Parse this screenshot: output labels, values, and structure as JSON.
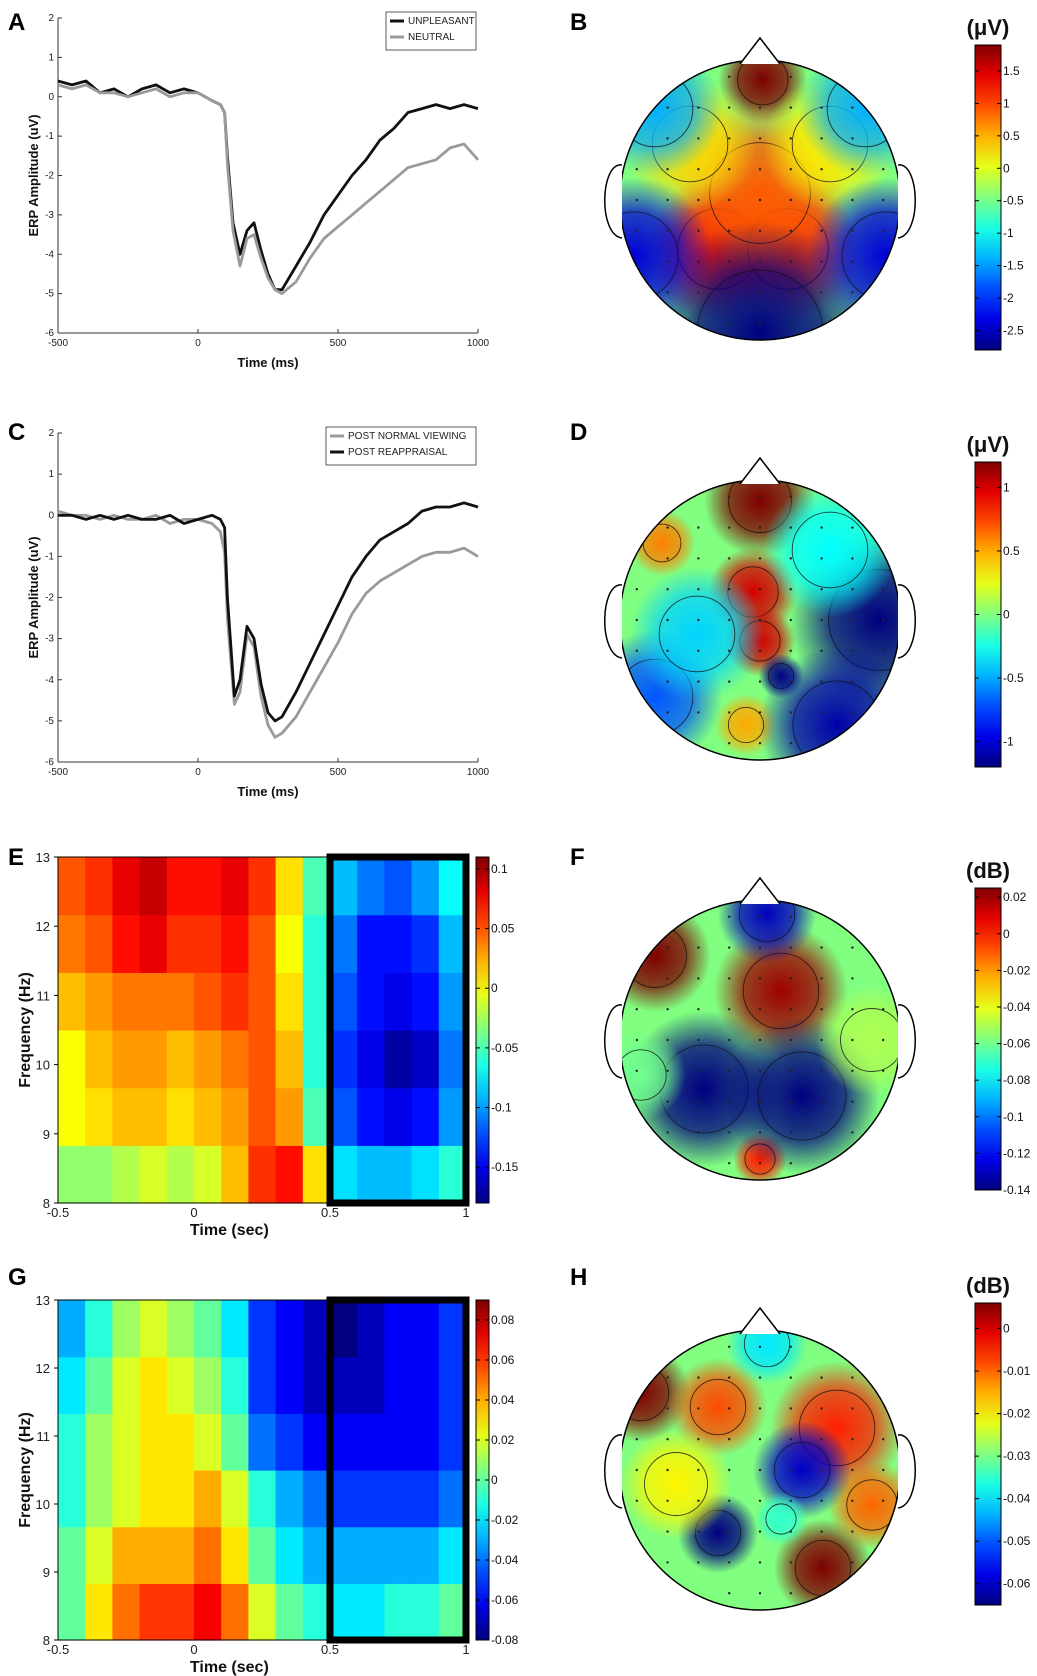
{
  "chart_data": [
    {
      "panel": "A",
      "type": "line",
      "xlabel": "Time (ms)",
      "ylabel": "ERP Amplitude (uV)",
      "xlim": [
        -500,
        1000
      ],
      "ylim": [
        -6,
        2
      ],
      "xticks": [
        "-500",
        "0",
        "500",
        "1000"
      ],
      "yticks": [
        "-6",
        "-5",
        "-4",
        "-3",
        "-2",
        "-1",
        "0",
        "1",
        "2"
      ],
      "legend_position": "top-right",
      "series": [
        {
          "name": "UNPLEASANT",
          "color": "#111111",
          "x": [
            -500,
            -450,
            -400,
            -350,
            -300,
            -250,
            -200,
            -150,
            -100,
            -50,
            0,
            50,
            80,
            95,
            105,
            125,
            150,
            175,
            200,
            225,
            250,
            275,
            300,
            350,
            400,
            450,
            500,
            550,
            600,
            650,
            700,
            750,
            800,
            850,
            900,
            950,
            1000
          ],
          "y": [
            0.4,
            0.3,
            0.4,
            0.1,
            0.2,
            0.0,
            0.2,
            0.3,
            0.1,
            0.2,
            0.1,
            -0.1,
            -0.2,
            -0.4,
            -1.5,
            -3.2,
            -4.0,
            -3.4,
            -3.2,
            -3.9,
            -4.5,
            -4.9,
            -4.9,
            -4.3,
            -3.7,
            -3.0,
            -2.5,
            -2.0,
            -1.6,
            -1.1,
            -0.8,
            -0.4,
            -0.3,
            -0.2,
            -0.3,
            -0.2,
            -0.3
          ]
        },
        {
          "name": "NEUTRAL",
          "color": "#9a9a9a",
          "x": [
            -500,
            -450,
            -400,
            -350,
            -300,
            -250,
            -200,
            -150,
            -100,
            -50,
            0,
            50,
            80,
            95,
            105,
            125,
            150,
            175,
            200,
            225,
            250,
            275,
            300,
            350,
            400,
            450,
            500,
            550,
            600,
            650,
            700,
            750,
            800,
            850,
            900,
            950,
            1000
          ],
          "y": [
            0.3,
            0.2,
            0.3,
            0.1,
            0.1,
            0.0,
            0.1,
            0.2,
            0.0,
            0.1,
            0.1,
            -0.1,
            -0.2,
            -0.4,
            -1.7,
            -3.4,
            -4.3,
            -3.6,
            -3.5,
            -4.1,
            -4.6,
            -4.9,
            -5.0,
            -4.7,
            -4.1,
            -3.6,
            -3.3,
            -3.0,
            -2.7,
            -2.4,
            -2.1,
            -1.8,
            -1.7,
            -1.6,
            -1.3,
            -1.2,
            -1.6
          ]
        }
      ]
    },
    {
      "panel": "C",
      "type": "line",
      "xlabel": "Time (ms)",
      "ylabel": "ERP Amplitude (uV)",
      "xlim": [
        -500,
        1000
      ],
      "ylim": [
        -6,
        2
      ],
      "xticks": [
        "-500",
        "0",
        "500",
        "1000"
      ],
      "yticks": [
        "-6",
        "-5",
        "-4",
        "-3",
        "-2",
        "-1",
        "0",
        "1",
        "2"
      ],
      "legend_position": "top-right",
      "series": [
        {
          "name": "POST NORMAL VIEWING",
          "color": "#9a9a9a",
          "x": [
            -500,
            -450,
            -400,
            -350,
            -300,
            -250,
            -200,
            -150,
            -100,
            -50,
            0,
            50,
            80,
            95,
            105,
            130,
            150,
            175,
            200,
            225,
            250,
            275,
            300,
            350,
            400,
            450,
            500,
            550,
            600,
            650,
            700,
            750,
            800,
            850,
            900,
            950,
            1000
          ],
          "y": [
            0.1,
            0.0,
            0.0,
            -0.1,
            0.0,
            -0.1,
            -0.1,
            0.0,
            -0.2,
            -0.1,
            -0.1,
            -0.2,
            -0.4,
            -0.9,
            -2.5,
            -4.6,
            -4.3,
            -2.9,
            -3.2,
            -4.4,
            -5.1,
            -5.4,
            -5.3,
            -4.9,
            -4.3,
            -3.7,
            -3.1,
            -2.4,
            -1.9,
            -1.6,
            -1.4,
            -1.2,
            -1.0,
            -0.9,
            -0.9,
            -0.8,
            -1.0
          ]
        },
        {
          "name": "POST REAPPRAISAL",
          "color": "#111111",
          "x": [
            -500,
            -450,
            -400,
            -350,
            -300,
            -250,
            -200,
            -150,
            -100,
            -50,
            0,
            50,
            80,
            95,
            105,
            130,
            150,
            175,
            200,
            225,
            250,
            275,
            300,
            350,
            400,
            450,
            500,
            550,
            600,
            650,
            700,
            750,
            800,
            850,
            900,
            950,
            1000
          ],
          "y": [
            0.0,
            0.0,
            -0.1,
            0.0,
            -0.1,
            0.0,
            -0.1,
            -0.1,
            0.0,
            -0.2,
            -0.1,
            0.0,
            -0.1,
            -0.3,
            -2.0,
            -4.4,
            -4.0,
            -2.7,
            -3.0,
            -4.1,
            -4.8,
            -5.0,
            -4.9,
            -4.3,
            -3.6,
            -2.9,
            -2.2,
            -1.5,
            -1.0,
            -0.6,
            -0.4,
            -0.2,
            0.1,
            0.2,
            0.2,
            0.3,
            0.2
          ]
        }
      ]
    },
    {
      "panel": "E",
      "type": "heatmap",
      "xlabel": "Time (sec)",
      "ylabel": "Frequency (Hz)",
      "xlim": [
        -0.5,
        1
      ],
      "ylim": [
        8,
        13
      ],
      "xticks": [
        "-0.5",
        "0",
        "0.5",
        "1"
      ],
      "yticks": [
        "8",
        "9",
        "10",
        "11",
        "12",
        "13"
      ],
      "colorbar": {
        "min": -0.18,
        "max": 0.11,
        "ticks": [
          "0.1",
          "0.05",
          "0",
          "-0.05",
          "-0.1",
          "-0.15"
        ]
      },
      "highlight_box": {
        "x": [
          0.5,
          1
        ],
        "y": [
          8,
          13
        ]
      },
      "time": [
        -0.45,
        -0.35,
        -0.25,
        -0.15,
        -0.05,
        0.05,
        0.15,
        0.25,
        0.35,
        0.45,
        0.55,
        0.65,
        0.75,
        0.85,
        0.95
      ],
      "freq": [
        8,
        9,
        10,
        11,
        12,
        13
      ],
      "values": [
        [
          -0.03,
          -0.03,
          -0.02,
          -0.01,
          -0.02,
          -0.01,
          0.02,
          0.06,
          0.07,
          0.01,
          -0.08,
          -0.09,
          -0.09,
          -0.08,
          -0.06
        ],
        [
          0.0,
          0.01,
          0.02,
          0.02,
          0.01,
          0.02,
          0.03,
          0.05,
          0.03,
          -0.05,
          -0.12,
          -0.14,
          -0.15,
          -0.14,
          -0.1
        ],
        [
          0.0,
          0.02,
          0.03,
          0.03,
          0.02,
          0.03,
          0.04,
          0.05,
          0.02,
          -0.06,
          -0.13,
          -0.15,
          -0.17,
          -0.16,
          -0.11
        ],
        [
          0.02,
          0.03,
          0.04,
          0.04,
          0.04,
          0.05,
          0.06,
          0.05,
          0.01,
          -0.06,
          -0.12,
          -0.14,
          -0.15,
          -0.14,
          -0.1
        ],
        [
          0.04,
          0.05,
          0.07,
          0.08,
          0.06,
          0.06,
          0.07,
          0.05,
          0.0,
          -0.06,
          -0.11,
          -0.14,
          -0.14,
          -0.13,
          -0.09
        ],
        [
          0.05,
          0.06,
          0.08,
          0.09,
          0.07,
          0.07,
          0.08,
          0.06,
          0.01,
          -0.05,
          -0.09,
          -0.11,
          -0.12,
          -0.1,
          -0.07
        ]
      ]
    },
    {
      "panel": "G",
      "type": "heatmap",
      "xlabel": "Time (sec)",
      "ylabel": "Frequency (Hz)",
      "xlim": [
        -0.5,
        1
      ],
      "ylim": [
        8,
        13
      ],
      "xticks": [
        "-0.5",
        "0",
        "0.5",
        "1"
      ],
      "yticks": [
        "8",
        "9",
        "10",
        "11",
        "12",
        "13"
      ],
      "colorbar": {
        "min": -0.08,
        "max": 0.09,
        "ticks": [
          "0.08",
          "0.06",
          "0.04",
          "0.02",
          "0",
          "-0.02",
          "-0.04",
          "-0.06",
          "-0.08"
        ]
      },
      "highlight_box": {
        "x": [
          0.5,
          1
        ],
        "y": [
          8,
          13
        ]
      },
      "time": [
        -0.45,
        -0.35,
        -0.25,
        -0.15,
        -0.05,
        0.05,
        0.15,
        0.25,
        0.35,
        0.45,
        0.55,
        0.65,
        0.75,
        0.85,
        0.95
      ],
      "freq": [
        8,
        9,
        10,
        11,
        12,
        13
      ],
      "values": [
        [
          0.0,
          0.03,
          0.05,
          0.06,
          0.06,
          0.07,
          0.05,
          0.02,
          0.0,
          -0.01,
          -0.02,
          -0.02,
          -0.01,
          -0.01,
          0.0
        ],
        [
          0.0,
          0.02,
          0.04,
          0.04,
          0.04,
          0.05,
          0.03,
          0.0,
          -0.02,
          -0.03,
          -0.03,
          -0.03,
          -0.03,
          -0.03,
          -0.02
        ],
        [
          -0.01,
          0.01,
          0.02,
          0.03,
          0.03,
          0.04,
          0.02,
          -0.01,
          -0.03,
          -0.04,
          -0.05,
          -0.05,
          -0.05,
          -0.05,
          -0.04
        ],
        [
          -0.01,
          0.01,
          0.02,
          0.03,
          0.03,
          0.02,
          0.0,
          -0.04,
          -0.05,
          -0.06,
          -0.06,
          -0.06,
          -0.06,
          -0.06,
          -0.05
        ],
        [
          -0.02,
          0.0,
          0.02,
          0.03,
          0.02,
          0.01,
          -0.01,
          -0.05,
          -0.06,
          -0.07,
          -0.07,
          -0.07,
          -0.06,
          -0.06,
          -0.05
        ],
        [
          -0.03,
          -0.01,
          0.01,
          0.02,
          0.01,
          0.0,
          -0.02,
          -0.05,
          -0.06,
          -0.07,
          -0.08,
          -0.07,
          -0.06,
          -0.06,
          -0.05
        ]
      ]
    },
    {
      "panel": "B",
      "type": "heatmap",
      "subtype": "scalp-topography",
      "colorbar": {
        "unit": "(μV)",
        "min": -2.8,
        "max": 1.9,
        "ticks": [
          "1.5",
          "1",
          "0.5",
          "0",
          "-0.5",
          "-1",
          "-1.5",
          "-2",
          "-2.5"
        ]
      },
      "blobs": [
        {
          "cx": 0.02,
          "cy": -0.86,
          "r": 0.2,
          "v": 1.9
        },
        {
          "cx": -0.3,
          "cy": 0.35,
          "r": 0.32,
          "v": 1.3
        },
        {
          "cx": 0.2,
          "cy": 0.35,
          "r": 0.32,
          "v": 1.2
        },
        {
          "cx": 0.0,
          "cy": -0.05,
          "r": 0.4,
          "v": 0.9
        },
        {
          "cx": -0.5,
          "cy": -0.4,
          "r": 0.3,
          "v": 0.3
        },
        {
          "cx": 0.5,
          "cy": -0.4,
          "r": 0.3,
          "v": 0.2
        },
        {
          "cx": 0.0,
          "cy": 0.95,
          "r": 0.5,
          "v": -3.0
        },
        {
          "cx": -0.9,
          "cy": 0.4,
          "r": 0.35,
          "v": -2.4
        },
        {
          "cx": 0.9,
          "cy": 0.4,
          "r": 0.35,
          "v": -2.4
        },
        {
          "cx": -0.75,
          "cy": -0.65,
          "r": 0.3,
          "v": -1.4
        },
        {
          "cx": 0.75,
          "cy": -0.65,
          "r": 0.3,
          "v": -1.4
        }
      ]
    },
    {
      "panel": "D",
      "type": "heatmap",
      "subtype": "scalp-topography",
      "colorbar": {
        "unit": "(μV)",
        "min": -1.2,
        "max": 1.2,
        "ticks": [
          "1",
          "0.5",
          "0",
          "-0.5",
          "-1"
        ]
      },
      "blobs": [
        {
          "cx": 0.0,
          "cy": -0.85,
          "r": 0.25,
          "v": 1.3
        },
        {
          "cx": -0.05,
          "cy": -0.2,
          "r": 0.2,
          "v": 1.0
        },
        {
          "cx": 0.0,
          "cy": 0.15,
          "r": 0.16,
          "v": 1.0
        },
        {
          "cx": -0.7,
          "cy": -0.55,
          "r": 0.15,
          "v": 0.6
        },
        {
          "cx": -0.1,
          "cy": 0.75,
          "r": 0.14,
          "v": 0.5
        },
        {
          "cx": 0.15,
          "cy": 0.4,
          "r": 0.1,
          "v": -1.2
        },
        {
          "cx": 0.85,
          "cy": 0.0,
          "r": 0.4,
          "v": -1.5
        },
        {
          "cx": 0.55,
          "cy": 0.75,
          "r": 0.35,
          "v": -1.1
        },
        {
          "cx": -0.75,
          "cy": 0.55,
          "r": 0.3,
          "v": -0.7
        },
        {
          "cx": -0.45,
          "cy": 0.1,
          "r": 0.3,
          "v": -0.4
        },
        {
          "cx": 0.5,
          "cy": -0.5,
          "r": 0.3,
          "v": -0.3
        }
      ]
    },
    {
      "panel": "F",
      "type": "heatmap",
      "subtype": "scalp-topography",
      "colorbar": {
        "unit": "(dB)",
        "min": -0.14,
        "max": 0.025,
        "ticks": [
          "0.02",
          "0",
          "-0.02",
          "-0.04",
          "-0.06",
          "-0.08",
          "-0.1",
          "-0.12",
          "-0.14"
        ]
      },
      "blobs": [
        {
          "cx": -0.75,
          "cy": -0.6,
          "r": 0.25,
          "v": 0.03
        },
        {
          "cx": 0.15,
          "cy": -0.35,
          "r": 0.3,
          "v": 0.02
        },
        {
          "cx": 0.0,
          "cy": 0.85,
          "r": 0.12,
          "v": 0.0
        },
        {
          "cx": -0.4,
          "cy": 0.35,
          "r": 0.35,
          "v": -0.15
        },
        {
          "cx": 0.3,
          "cy": 0.4,
          "r": 0.35,
          "v": -0.14
        },
        {
          "cx": 0.05,
          "cy": -0.9,
          "r": 0.22,
          "v": -0.13
        },
        {
          "cx": 0.8,
          "cy": 0.0,
          "r": 0.25,
          "v": -0.05
        },
        {
          "cx": -0.85,
          "cy": 0.25,
          "r": 0.2,
          "v": -0.06
        }
      ]
    },
    {
      "panel": "H",
      "type": "heatmap",
      "subtype": "scalp-topography",
      "colorbar": {
        "unit": "(dB)",
        "min": -0.065,
        "max": 0.006,
        "ticks": [
          "0",
          "-0.01",
          "-0.02",
          "-0.03",
          "-0.04",
          "-0.05",
          "-0.06"
        ]
      },
      "blobs": [
        {
          "cx": -0.85,
          "cy": -0.55,
          "r": 0.22,
          "v": 0.006
        },
        {
          "cx": 0.45,
          "cy": 0.7,
          "r": 0.22,
          "v": 0.006
        },
        {
          "cx": 0.55,
          "cy": -0.3,
          "r": 0.3,
          "v": -0.005
        },
        {
          "cx": -0.3,
          "cy": -0.45,
          "r": 0.22,
          "v": -0.008
        },
        {
          "cx": 0.8,
          "cy": 0.25,
          "r": 0.2,
          "v": -0.01
        },
        {
          "cx": 0.3,
          "cy": 0.0,
          "r": 0.22,
          "v": -0.06
        },
        {
          "cx": -0.3,
          "cy": 0.45,
          "r": 0.18,
          "v": -0.065
        },
        {
          "cx": 0.05,
          "cy": -0.9,
          "r": 0.18,
          "v": -0.04
        },
        {
          "cx": 0.15,
          "cy": 0.35,
          "r": 0.12,
          "v": -0.035
        },
        {
          "cx": -0.6,
          "cy": 0.1,
          "r": 0.25,
          "v": -0.02
        }
      ]
    }
  ]
}
